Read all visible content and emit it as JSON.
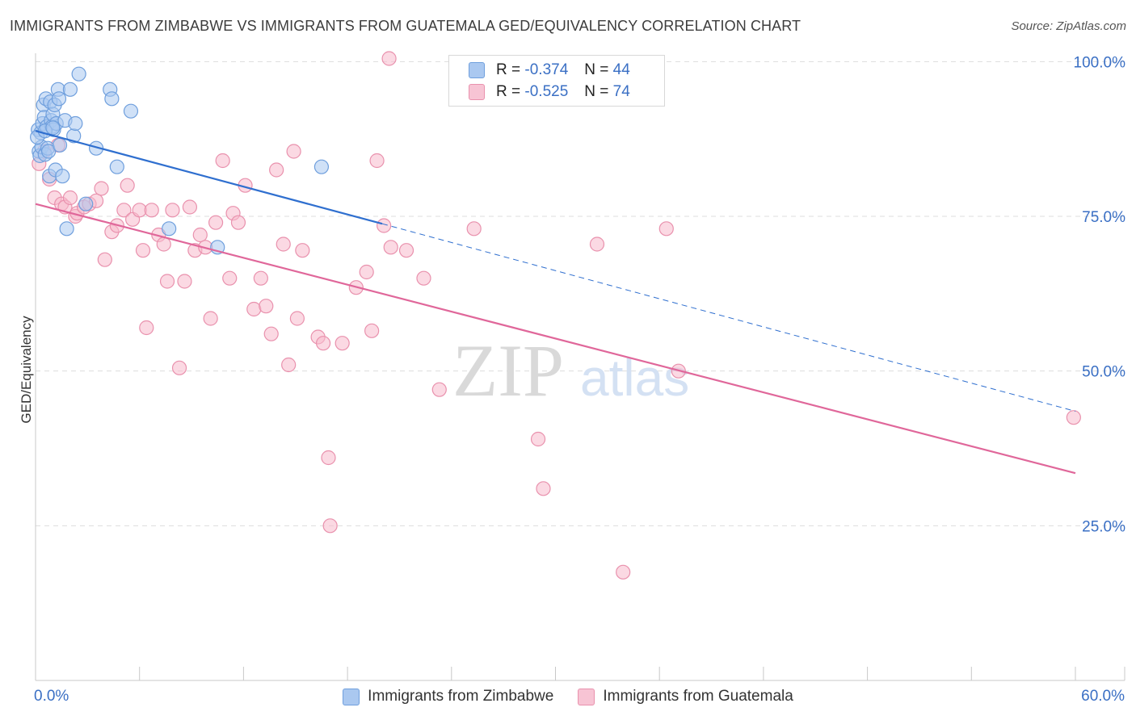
{
  "header": {
    "title": "IMMIGRANTS FROM ZIMBABWE VS IMMIGRANTS FROM GUATEMALA GED/EQUIVALENCY CORRELATION CHART",
    "source": "Source: ZipAtlas.com"
  },
  "watermark": {
    "zip": "ZIP",
    "atlas": "atlas"
  },
  "legend_top": {
    "series1": {
      "r_label": "R =",
      "r_value": "-0.374",
      "n_label": "N =",
      "n_value": "44"
    },
    "series2": {
      "r_label": "R =",
      "r_value": "-0.525",
      "n_label": "N =",
      "n_value": "74"
    }
  },
  "colors": {
    "zimbabwe_fill": "#aac8f0",
    "zimbabwe_stroke": "#6f9fdd",
    "zimbabwe_line": "#2f6fcf",
    "guatemala_fill": "#f7b9cc",
    "guatemala_stroke": "#e991ad",
    "guatemala_line": "#e0679a",
    "axis_text": "#3a6fc4",
    "grid": "#dddddd"
  },
  "chart_data": {
    "type": "scatter",
    "title": "IMMIGRANTS FROM ZIMBABWE VS IMMIGRANTS FROM GUATEMALA GED/EQUIVALENCY CORRELATION CHART",
    "xlabel": "",
    "ylabel": "GED/Equivalency",
    "xlim": [
      0,
      60
    ],
    "ylim": [
      0,
      102
    ],
    "x_tick_labels": [
      "0.0%",
      "60.0%"
    ],
    "y_ticks": [
      25,
      50,
      75,
      100
    ],
    "y_tick_labels": [
      "25.0%",
      "50.0%",
      "75.0%",
      "100.0%"
    ],
    "grid": true,
    "legend_position": "bottom-center",
    "series": [
      {
        "name": "Immigrants from Zimbabwe",
        "r": -0.374,
        "n": 44,
        "trend": {
          "x_start": 0,
          "y_start": 88.8,
          "x_end": 20,
          "y_end": 73.8,
          "dashed_to_x": 60,
          "dashed_to_y": 43.5
        },
        "points": [
          [
            0.15,
            89.0
          ],
          [
            0.2,
            85.5
          ],
          [
            0.25,
            84.8
          ],
          [
            0.3,
            88.5
          ],
          [
            0.35,
            86.2
          ],
          [
            0.4,
            90.0
          ],
          [
            0.45,
            93.0
          ],
          [
            0.5,
            91.0
          ],
          [
            0.55,
            85.0
          ],
          [
            0.6,
            94.0
          ],
          [
            0.65,
            89.5
          ],
          [
            0.7,
            86.0
          ],
          [
            0.75,
            85.5
          ],
          [
            0.8,
            81.5
          ],
          [
            0.85,
            93.5
          ],
          [
            0.9,
            90.5
          ],
          [
            0.95,
            89.5
          ],
          [
            1.0,
            91.5
          ],
          [
            1.05,
            89.0
          ],
          [
            1.1,
            93.0
          ],
          [
            1.15,
            82.5
          ],
          [
            1.2,
            90.0
          ],
          [
            1.3,
            95.5
          ],
          [
            1.35,
            94.0
          ],
          [
            1.4,
            86.5
          ],
          [
            1.55,
            81.5
          ],
          [
            1.7,
            90.5
          ],
          [
            1.8,
            73.0
          ],
          [
            2.0,
            95.5
          ],
          [
            2.2,
            88.0
          ],
          [
            2.3,
            90.0
          ],
          [
            2.5,
            98.0
          ],
          [
            2.9,
            77.0
          ],
          [
            3.5,
            86.0
          ],
          [
            4.3,
            95.5
          ],
          [
            4.4,
            94.0
          ],
          [
            4.7,
            83.0
          ],
          [
            5.5,
            92.0
          ],
          [
            7.7,
            73.0
          ],
          [
            10.5,
            70.0
          ],
          [
            16.5,
            83.0
          ],
          [
            0.1,
            87.8
          ],
          [
            0.55,
            88.8
          ],
          [
            1.0,
            89.3
          ]
        ]
      },
      {
        "name": "Immigrants from Guatemala",
        "r": -0.525,
        "n": 74,
        "trend": {
          "x_start": 0,
          "y_start": 77.0,
          "x_end": 60,
          "y_end": 33.5
        },
        "points": [
          [
            0.2,
            83.5
          ],
          [
            0.5,
            85.5
          ],
          [
            0.8,
            81.0
          ],
          [
            1.1,
            78.0
          ],
          [
            1.3,
            86.5
          ],
          [
            1.5,
            77.0
          ],
          [
            1.7,
            76.5
          ],
          [
            2.0,
            78.0
          ],
          [
            2.3,
            75.0
          ],
          [
            2.4,
            75.5
          ],
          [
            2.8,
            76.5
          ],
          [
            3.1,
            77.0
          ],
          [
            3.5,
            77.5
          ],
          [
            3.8,
            79.5
          ],
          [
            4.0,
            68.0
          ],
          [
            4.4,
            72.5
          ],
          [
            4.7,
            73.5
          ],
          [
            5.1,
            76.0
          ],
          [
            5.3,
            80.0
          ],
          [
            5.6,
            74.5
          ],
          [
            6.0,
            76.0
          ],
          [
            6.2,
            69.5
          ],
          [
            6.4,
            57.0
          ],
          [
            6.7,
            76.0
          ],
          [
            7.1,
            72.0
          ],
          [
            7.4,
            70.5
          ],
          [
            7.6,
            64.5
          ],
          [
            7.9,
            76.0
          ],
          [
            8.3,
            50.5
          ],
          [
            8.6,
            64.5
          ],
          [
            8.9,
            76.5
          ],
          [
            9.2,
            69.5
          ],
          [
            9.5,
            72.0
          ],
          [
            9.8,
            70.0
          ],
          [
            10.1,
            58.5
          ],
          [
            10.4,
            74.0
          ],
          [
            10.8,
            84.0
          ],
          [
            11.2,
            65.0
          ],
          [
            11.4,
            75.5
          ],
          [
            11.7,
            74.0
          ],
          [
            12.1,
            80.0
          ],
          [
            12.6,
            60.0
          ],
          [
            13.0,
            65.0
          ],
          [
            13.3,
            60.5
          ],
          [
            13.6,
            56.0
          ],
          [
            13.9,
            82.5
          ],
          [
            14.3,
            70.5
          ],
          [
            14.6,
            51.0
          ],
          [
            14.9,
            85.5
          ],
          [
            15.1,
            58.5
          ],
          [
            15.4,
            69.5
          ],
          [
            16.3,
            55.5
          ],
          [
            16.6,
            54.5
          ],
          [
            16.9,
            36.0
          ],
          [
            17.0,
            25.0
          ],
          [
            17.7,
            54.5
          ],
          [
            18.5,
            63.5
          ],
          [
            19.1,
            66.0
          ],
          [
            19.4,
            56.5
          ],
          [
            19.7,
            84.0
          ],
          [
            20.1,
            73.5
          ],
          [
            20.4,
            100.5
          ],
          [
            20.5,
            70.0
          ],
          [
            21.4,
            69.5
          ],
          [
            22.4,
            65.0
          ],
          [
            23.3,
            47.0
          ],
          [
            25.3,
            73.0
          ],
          [
            29.0,
            39.0
          ],
          [
            29.3,
            31.0
          ],
          [
            32.4,
            70.5
          ],
          [
            33.9,
            17.5
          ],
          [
            36.4,
            73.0
          ],
          [
            37.1,
            50.0
          ],
          [
            59.9,
            42.5
          ]
        ]
      }
    ]
  },
  "legend_bottom": {
    "items": [
      "Immigrants from Zimbabwe",
      "Immigrants from Guatemala"
    ]
  }
}
